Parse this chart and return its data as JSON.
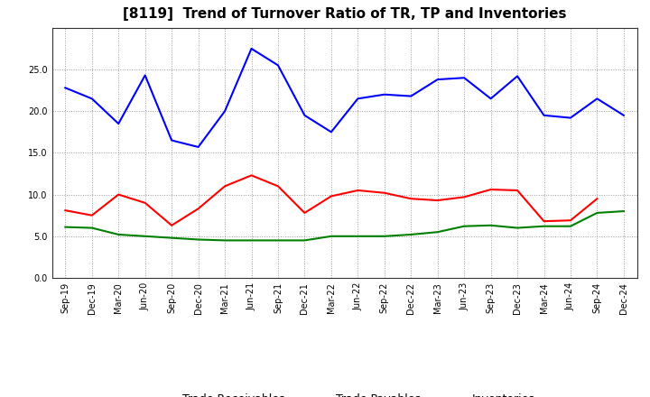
{
  "title": "[8119]  Trend of Turnover Ratio of TR, TP and Inventories",
  "x_labels": [
    "Sep-19",
    "Dec-19",
    "Mar-20",
    "Jun-20",
    "Sep-20",
    "Dec-20",
    "Mar-21",
    "Jun-21",
    "Sep-21",
    "Dec-21",
    "Mar-22",
    "Jun-22",
    "Sep-22",
    "Dec-22",
    "Mar-23",
    "Jun-23",
    "Sep-23",
    "Dec-23",
    "Mar-24",
    "Jun-24",
    "Sep-24",
    "Dec-24"
  ],
  "trade_receivables": [
    8.1,
    7.5,
    10.0,
    9.0,
    6.3,
    8.3,
    11.0,
    12.3,
    11.0,
    7.8,
    9.8,
    10.5,
    10.2,
    9.5,
    9.3,
    9.7,
    10.6,
    10.5,
    6.8,
    6.9,
    9.5,
    null
  ],
  "trade_payables": [
    22.8,
    21.5,
    18.5,
    24.3,
    16.5,
    15.7,
    20.0,
    27.5,
    25.5,
    19.5,
    17.5,
    21.5,
    22.0,
    21.8,
    23.8,
    24.0,
    21.5,
    24.2,
    19.5,
    19.2,
    21.5,
    19.5
  ],
  "inventories": [
    6.1,
    6.0,
    5.2,
    5.0,
    4.8,
    4.6,
    4.5,
    4.5,
    4.5,
    4.5,
    5.0,
    5.0,
    5.0,
    5.2,
    5.5,
    6.2,
    6.3,
    6.0,
    6.2,
    6.2,
    7.8,
    8.0
  ],
  "ylim": [
    0,
    30
  ],
  "yticks": [
    0.0,
    5.0,
    10.0,
    15.0,
    20.0,
    25.0
  ],
  "line_colors": {
    "trade_receivables": "#ff0000",
    "trade_payables": "#0000ff",
    "inventories": "#008000"
  },
  "line_width": 1.5,
  "background_color": "#ffffff",
  "grid_color": "#999999",
  "title_fontsize": 11,
  "tick_fontsize": 7,
  "legend_fontsize": 9
}
